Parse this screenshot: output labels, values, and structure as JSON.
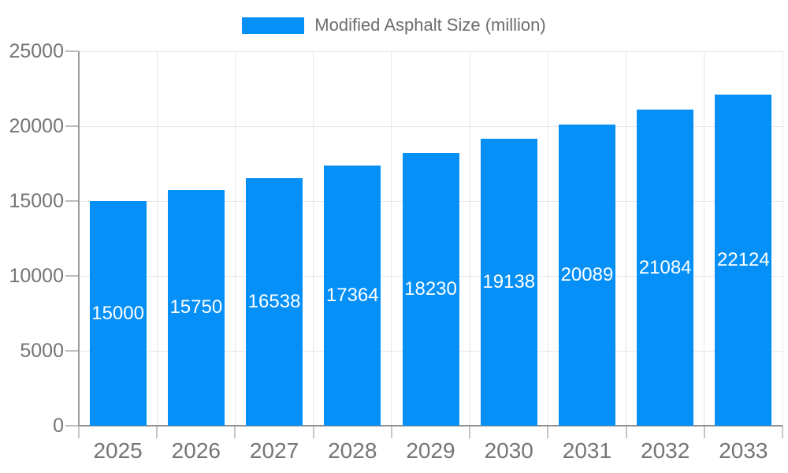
{
  "legend": {
    "label": "Modified Asphalt Size (million)"
  },
  "chart_data": {
    "type": "bar",
    "title": "",
    "xlabel": "",
    "ylabel": "",
    "categories": [
      "2025",
      "2026",
      "2027",
      "2028",
      "2029",
      "2030",
      "2031",
      "2032",
      "2033"
    ],
    "values": [
      15000,
      15750,
      16538,
      17364,
      18230,
      19138,
      20089,
      21084,
      22124
    ],
    "value_labels": [
      "15000",
      "15750",
      "16538",
      "17364",
      "18230",
      "19138",
      "20089",
      "21084",
      "22124"
    ],
    "series": [
      {
        "name": "Modified Asphalt Size (million)",
        "values": [
          15000,
          15750,
          16538,
          17364,
          18230,
          19138,
          20089,
          21084,
          22124
        ]
      }
    ],
    "ylim": [
      0,
      25000
    ],
    "yticks": [
      0,
      5000,
      10000,
      15000,
      20000,
      25000
    ],
    "ytick_labels": [
      "0",
      "5000",
      "10000",
      "15000",
      "20000",
      "25000"
    ],
    "grid": true,
    "legend_position": "top-center",
    "value_label_position": "inside-middle"
  },
  "colors": {
    "bar": "#0590f8",
    "value_label": "#ffffff",
    "axis_label": "#757575",
    "legend_text": "#6d6d6d",
    "gridline": "#e7e7e7",
    "axis_line": "#9a9a9a",
    "background": "#ffffff"
  }
}
